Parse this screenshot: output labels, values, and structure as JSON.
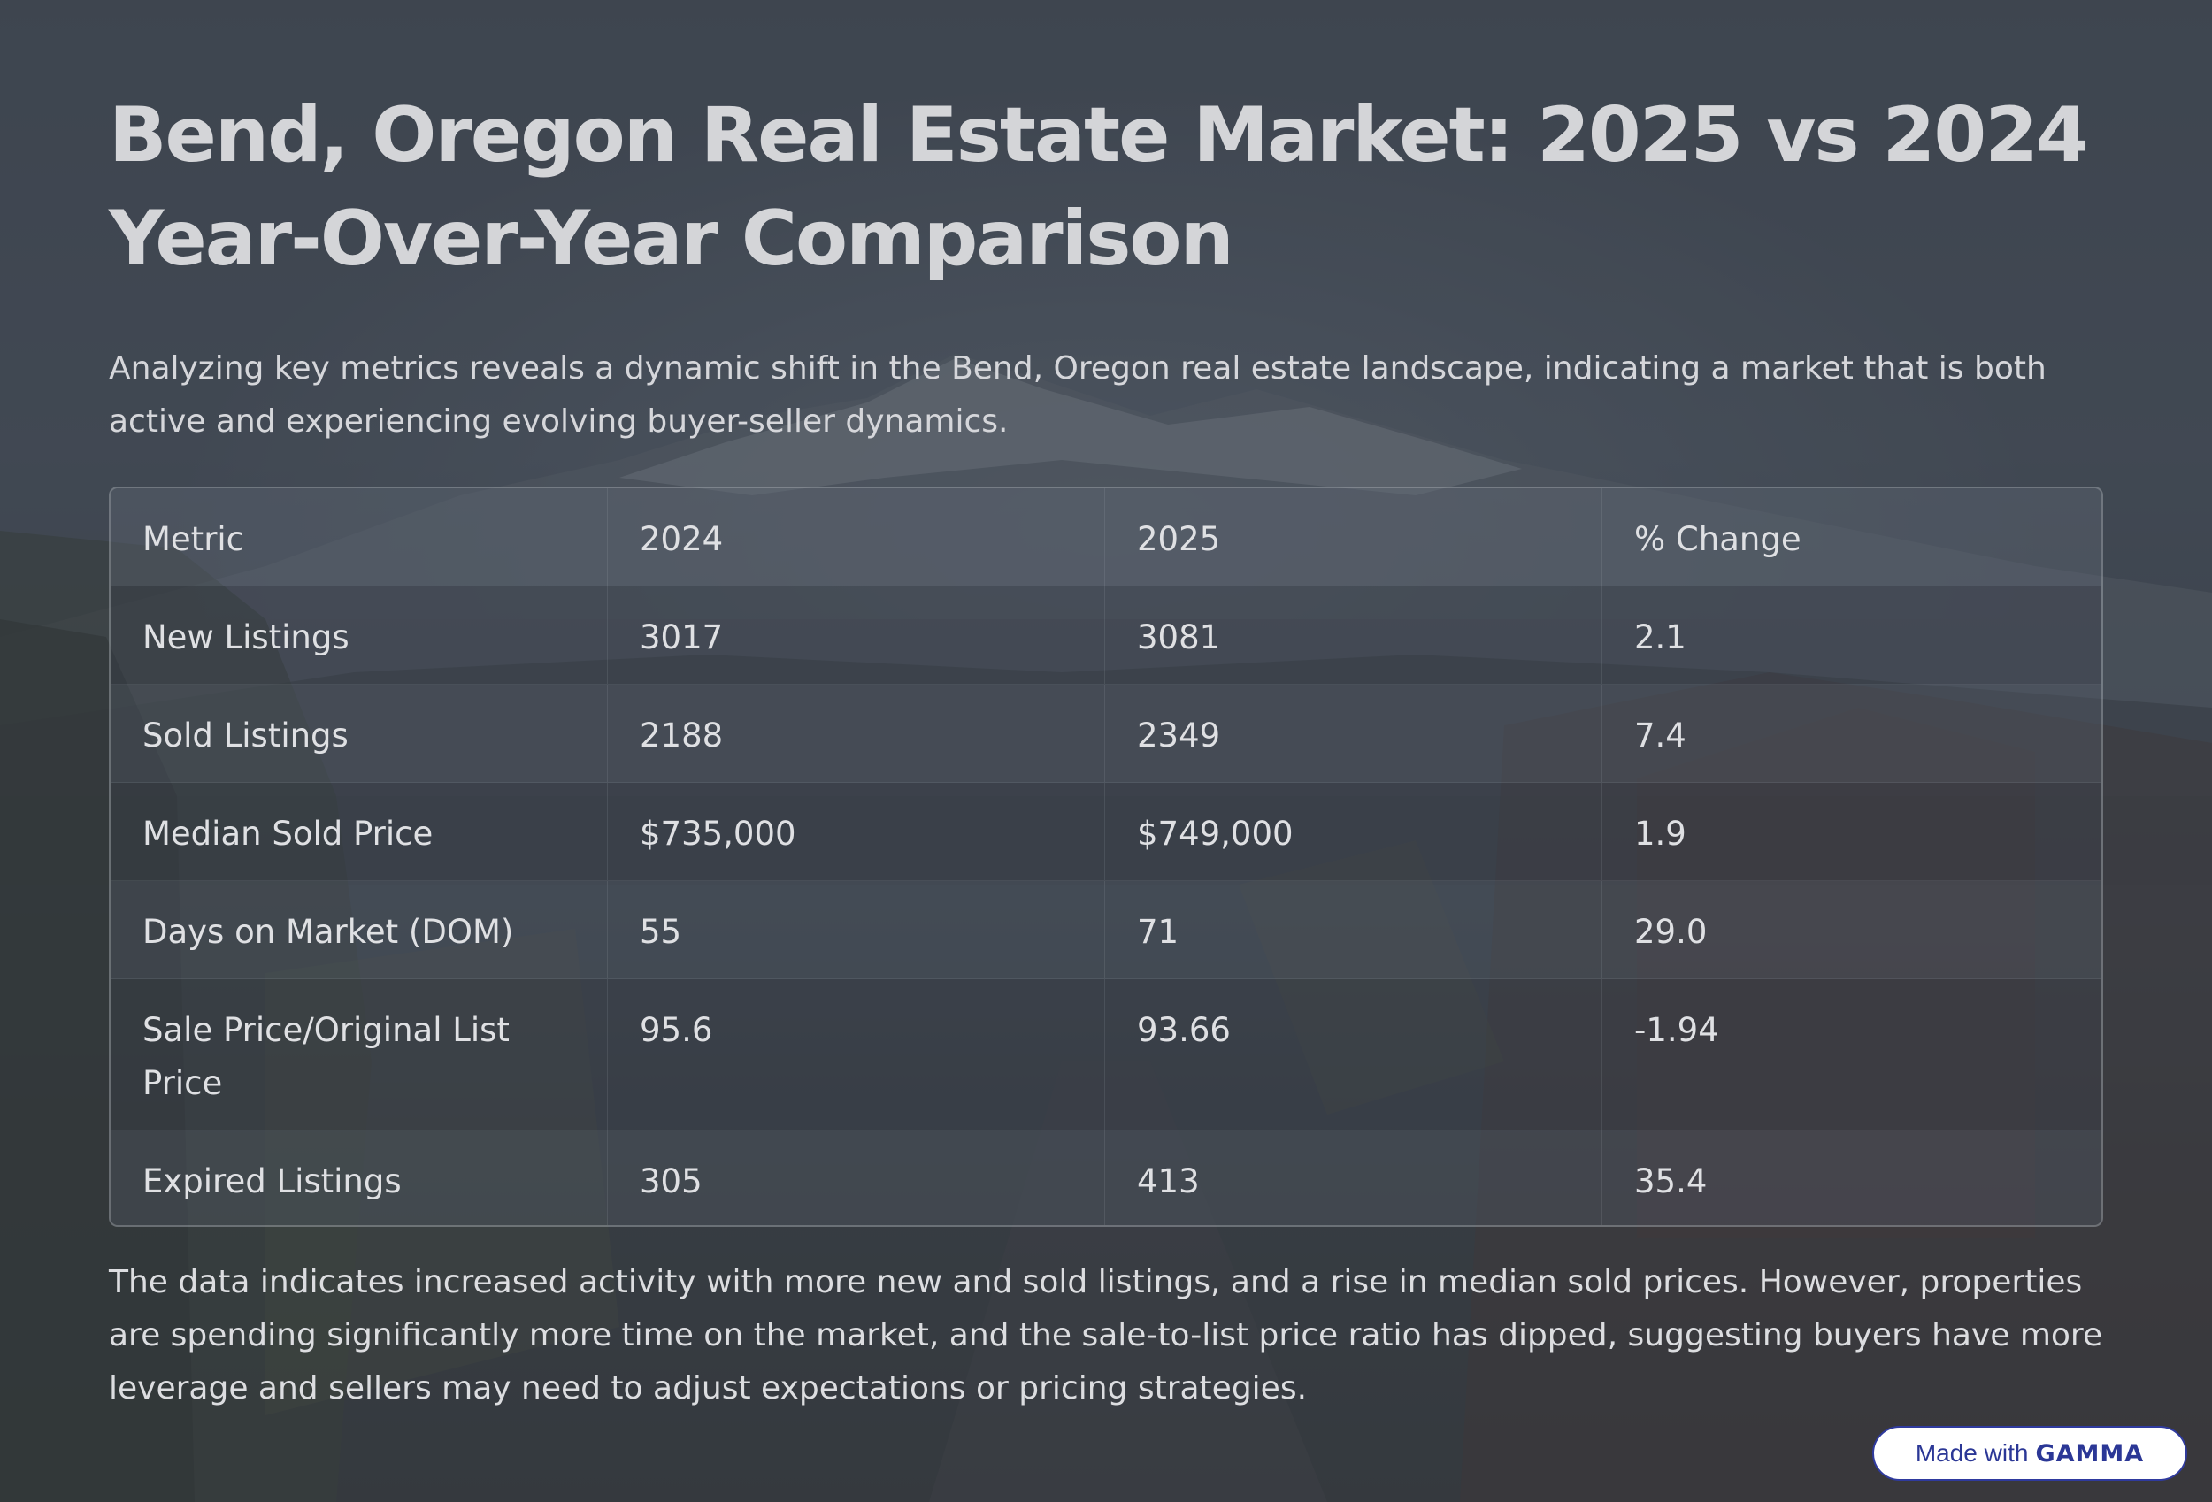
{
  "title": "Bend, Oregon Real Estate Market: 2025 vs 2024 Year-Over-Year Comparison",
  "intro": "Analyzing key metrics reveals a dynamic shift in the Bend, Oregon real estate landscape, indicating a market that is both active and experiencing evolving buyer-seller dynamics.",
  "table": {
    "headers": [
      "Metric",
      "2024",
      "2025",
      "% Change"
    ],
    "rows": [
      [
        "New Listings",
        "3017",
        "3081",
        "2.1"
      ],
      [
        "Sold Listings",
        "2188",
        "2349",
        "7.4"
      ],
      [
        "Median Sold Price",
        "$735,000",
        "$749,000",
        "1.9"
      ],
      [
        "Days on Market (DOM)",
        "55",
        "71",
        "29.0"
      ],
      [
        "Sale Price/Original List Price",
        "95.6",
        "93.66",
        "-1.94"
      ],
      [
        "Expired Listings",
        "305",
        "413",
        "35.4"
      ]
    ]
  },
  "conclusion": "The data indicates increased activity with more new and sold listings, and a rise in median sold prices. However, properties are spending significantly more time on the market, and the sale-to-list price ratio has dipped, suggesting buyers have more leverage and sellers may need to adjust expectations or pricing strategies.",
  "badge": {
    "prefix": "Made with",
    "brand": "GAMMA",
    "border_color": "#2f3a9e"
  }
}
